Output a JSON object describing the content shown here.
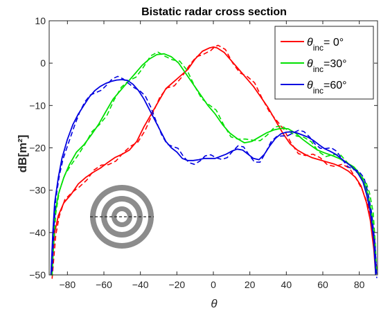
{
  "chart_data": {
    "type": "line",
    "title": "Bistatic radar cross section",
    "xlabel": "θ",
    "ylabel": "dB[m²]",
    "xlim": [
      -90,
      90
    ],
    "ylim": [
      -50,
      10
    ],
    "xticks": [
      -80,
      -60,
      -40,
      -20,
      0,
      20,
      40,
      60,
      80
    ],
    "yticks": [
      10,
      0,
      -10,
      -20,
      -30,
      -40,
      -50
    ],
    "grid": false,
    "legend_position": "top-right",
    "legend": [
      {
        "prefix": "θ",
        "sub": "inc",
        "suffix": "= 0°"
      },
      {
        "prefix": "θ",
        "sub": "inc",
        "suffix": "=30°"
      },
      {
        "prefix": "θ",
        "sub": "inc",
        "suffix": "=60°"
      }
    ],
    "series": [
      {
        "color": "#ff0000",
        "x": [
          -89,
          -88,
          -87,
          -85,
          -82,
          -78,
          -74,
          -70,
          -66,
          -62,
          -58,
          -54,
          -50,
          -46,
          -42,
          -38,
          -34,
          -30,
          -26,
          -22,
          -18,
          -14,
          -10,
          -6,
          -2,
          0,
          2,
          6,
          10,
          14,
          18,
          22,
          26,
          30,
          34,
          38,
          42,
          46,
          50,
          54,
          58,
          62,
          66,
          70,
          74,
          78,
          81,
          84,
          86,
          88,
          89
        ],
        "y": [
          -50,
          -45,
          -40,
          -36,
          -33,
          -31,
          -28.5,
          -27,
          -25.8,
          -24.8,
          -23.5,
          -22.3,
          -21.5,
          -20.5,
          -18.5,
          -15,
          -12,
          -9,
          -6,
          -4.5,
          -3,
          -1.5,
          1,
          2.8,
          3.6,
          3.8,
          3.6,
          2.5,
          0.5,
          -1.5,
          -3.5,
          -5.5,
          -8,
          -10.5,
          -13.5,
          -16.5,
          -19,
          -20.5,
          -21.5,
          -22.3,
          -22.8,
          -23.3,
          -23.8,
          -24.5,
          -25.5,
          -27,
          -29,
          -33,
          -37,
          -44,
          -50
        ]
      },
      {
        "color": "#00e000",
        "x": [
          -89,
          -88,
          -87,
          -85,
          -82,
          -79,
          -75,
          -71,
          -67,
          -63,
          -59,
          -55,
          -51,
          -47,
          -43,
          -39,
          -35,
          -31,
          -27,
          -23,
          -19,
          -15,
          -11,
          -7,
          -3,
          1,
          5,
          9,
          13,
          17,
          21,
          25,
          29,
          33,
          37,
          41,
          45,
          49,
          53,
          57,
          61,
          65,
          69,
          73,
          77,
          80,
          83,
          85,
          87,
          88,
          89
        ],
        "y": [
          -50,
          -42,
          -36,
          -31,
          -27,
          -24,
          -21,
          -19.3,
          -17,
          -14.5,
          -11.5,
          -8.5,
          -6.5,
          -4.5,
          -2.5,
          -0.5,
          1,
          2,
          2.2,
          1.5,
          0,
          -2.5,
          -5,
          -7.5,
          -10,
          -12,
          -14.5,
          -16.5,
          -17.8,
          -18.8,
          -18.5,
          -17.5,
          -16.5,
          -15.8,
          -15.4,
          -15.5,
          -16.5,
          -18,
          -19.3,
          -20.5,
          -21.2,
          -21.8,
          -22.5,
          -23.5,
          -24.5,
          -26,
          -28.5,
          -31.5,
          -36,
          -42,
          -50
        ]
      },
      {
        "color": "#0000e0",
        "x": [
          -89,
          -88,
          -87,
          -85,
          -83,
          -80,
          -77,
          -74,
          -71,
          -68,
          -65,
          -62,
          -59,
          -56,
          -53,
          -50,
          -47,
          -44,
          -41,
          -38,
          -35,
          -32,
          -29,
          -26,
          -23,
          -20,
          -17,
          -14,
          -11,
          -8,
          -5,
          -2,
          1,
          4,
          7,
          10,
          13,
          16,
          19,
          22,
          25,
          28,
          31,
          34,
          37,
          40,
          43,
          46,
          49,
          52,
          55,
          58,
          61,
          64,
          67,
          70,
          73,
          76,
          79,
          82,
          84,
          86,
          88,
          89
        ],
        "y": [
          -50,
          -40,
          -33,
          -27,
          -22.5,
          -18,
          -14.5,
          -12,
          -10,
          -8,
          -6.5,
          -5.5,
          -4.8,
          -4.3,
          -4,
          -3.9,
          -4.1,
          -5,
          -6.5,
          -8.5,
          -11,
          -13.5,
          -16,
          -18.5,
          -20,
          -21,
          -22.5,
          -23,
          -23,
          -22.8,
          -22.5,
          -22.5,
          -22.5,
          -22,
          -21.5,
          -20.8,
          -20.3,
          -20.5,
          -21.5,
          -22.5,
          -22.8,
          -21.5,
          -19.5,
          -17.8,
          -16.7,
          -16.3,
          -16.2,
          -16.5,
          -17,
          -17.5,
          -18.3,
          -19.3,
          -20.2,
          -20.8,
          -21.5,
          -22.5,
          -23.5,
          -24.5,
          -25.8,
          -28,
          -31,
          -35,
          -42,
          -50
        ]
      }
    ]
  }
}
